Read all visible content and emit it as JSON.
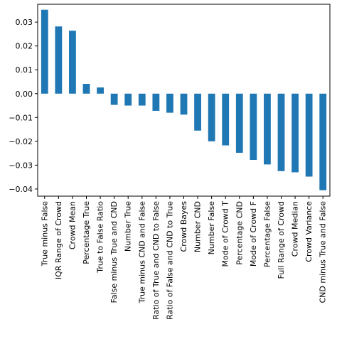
{
  "chart_data": {
    "type": "bar",
    "title": "",
    "xlabel": "",
    "ylabel": "",
    "ylim": [
      -0.043,
      0.0375
    ],
    "yticks": [
      -0.04,
      -0.03,
      -0.02,
      -0.01,
      0.0,
      0.01,
      0.02,
      0.03
    ],
    "ytick_labels": [
      "−0.04",
      "−0.03",
      "−0.02",
      "−0.01",
      "0.00",
      "0.01",
      "0.02",
      "0.03"
    ],
    "grid": false,
    "bar_color": "#1f77b4",
    "categories": [
      "True minus False",
      "IQR Range of Crowd",
      "Crowd Mean",
      "Percentage True",
      "True to False Ratio",
      "False minus True and CND",
      "Number True",
      "True minus CND and False",
      "Ratio of True and CND to False",
      "Ratio of False and CND to True",
      "Crowd Bayes",
      "Number CND",
      "Number False",
      "Mode of Crowd T",
      "Percentage CND",
      "Mode of Crowd F",
      "Percentage False",
      "Full Range of Crowd",
      "Crowd Median",
      "Crowd Variance",
      "CND minus True and False"
    ],
    "values": [
      0.0352,
      0.0282,
      0.0264,
      0.0041,
      0.0026,
      -0.0047,
      -0.005,
      -0.005,
      -0.0072,
      -0.008,
      -0.0088,
      -0.0155,
      -0.02,
      -0.0217,
      -0.0248,
      -0.0278,
      -0.0297,
      -0.0325,
      -0.033,
      -0.0348,
      -0.0405
    ]
  }
}
